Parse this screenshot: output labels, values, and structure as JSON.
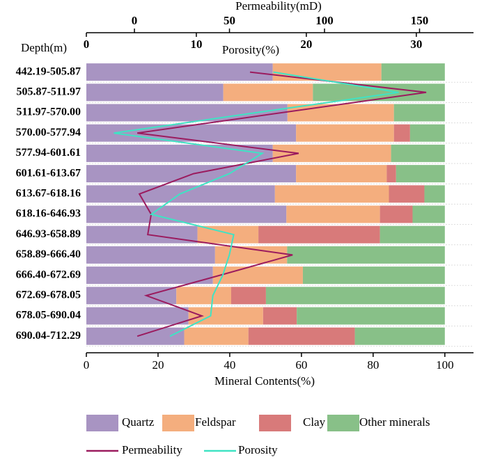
{
  "chart_data": {
    "type": "stacked_bar_horizontal",
    "y_label": "Depth(m)",
    "x_label": "Mineral Contents(%)",
    "x2_label": "Permeability(mD)",
    "x3_label": "Porosity(%)",
    "categories": [
      "442.19-505.87",
      "505.87-511.97",
      "511.97-570.00",
      "570.00-577.94",
      "577.94-601.61",
      "601.61-613.67",
      "613.67-618.16",
      "618.16-646.93",
      "646.93-658.89",
      "658.89-666.40",
      "666.40-672.69",
      "672.69-678.05",
      "678.05-690.04",
      "690.04-712.29"
    ],
    "series": [
      {
        "name": "Quartz",
        "color": "#a894c2",
        "values": [
          52,
          38.2,
          56.1,
          58.5,
          52,
          58.5,
          52.6,
          55.8,
          31,
          35.9,
          35.3,
          25.1,
          28.5,
          27.3
        ]
      },
      {
        "name": "Feldspar",
        "color": "#f4ae7e",
        "values": [
          30.3,
          25,
          29.7,
          27.3,
          33,
          25.3,
          31.8,
          26.1,
          17,
          20.1,
          25.1,
          15.3,
          20.8,
          17.9
        ]
      },
      {
        "name": "Clay",
        "color": "#d87a7a",
        "values": [
          0,
          0,
          0,
          4.5,
          0,
          2.6,
          9.9,
          9.1,
          33.9,
          0,
          0,
          9.7,
          9.4,
          29.7
        ]
      },
      {
        "name": "Other minerals",
        "color": "#88c088",
        "values": [
          17.7,
          36.8,
          14.2,
          9.7,
          15,
          13.6,
          5.7,
          9,
          18.1,
          44,
          39.6,
          49.9,
          41.3,
          25.1
        ]
      }
    ],
    "line_series": [
      {
        "name": "Permeability",
        "color": "#9b1b5e",
        "axis": "x2",
        "values": [
          60.8,
          153.5,
          77.3,
          1.5,
          86.4,
          31.1,
          2.6,
          8.8,
          7,
          83.2,
          45,
          6.2,
          35.5,
          1.5
        ]
      },
      {
        "name": "Porosity",
        "color": "#3fe3c4",
        "axis": "x3",
        "values": [
          17,
          28.4,
          15.4,
          2.5,
          16,
          13,
          8.5,
          5.9,
          13.4,
          13,
          12.4,
          11.5,
          11.3,
          7.6
        ]
      }
    ],
    "xlim": [
      0,
      108
    ],
    "xticks": [
      0,
      20,
      40,
      60,
      80,
      100
    ],
    "x2lim": [
      -25.3,
      178.4
    ],
    "x2ticks": [
      0,
      50,
      100,
      150
    ],
    "x3lim": [
      0,
      35.2
    ],
    "x3ticks": [
      0,
      10,
      20,
      30
    ]
  }
}
